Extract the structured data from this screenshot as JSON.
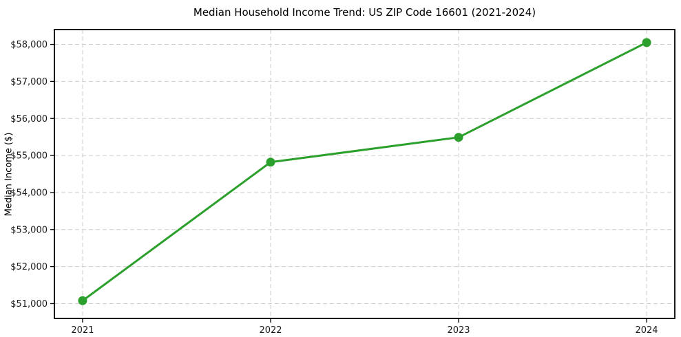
{
  "title": "Median Household Income Trend: US ZIP Code 16601 (2021-2024)",
  "chart_data": {
    "type": "line",
    "title": "Median Household Income Trend: US ZIP Code 16601 (2021-2024)",
    "xlabel": "",
    "ylabel": "Median Income ($)",
    "categories": [
      "2021",
      "2022",
      "2023",
      "2024"
    ],
    "series": [
      {
        "name": "Median Household Income",
        "values": [
          51080,
          54820,
          55490,
          58050
        ]
      }
    ],
    "y_ticks": [
      51000,
      52000,
      53000,
      54000,
      55000,
      56000,
      57000,
      58000
    ],
    "y_tick_labels": [
      "$51,000",
      "$52,000",
      "$53,000",
      "$54,000",
      "$55,000",
      "$56,000",
      "$57,000",
      "$58,000"
    ],
    "ylim": [
      50600,
      58400
    ],
    "x_margin": 0.05,
    "grid": true,
    "grid_style": "dashed",
    "legend_position": "none",
    "line_color": "#2ca02c",
    "marker": "circle",
    "grid_color": "#cdcdcd",
    "spine_color": "#000000",
    "background_color": "#ffffff"
  }
}
